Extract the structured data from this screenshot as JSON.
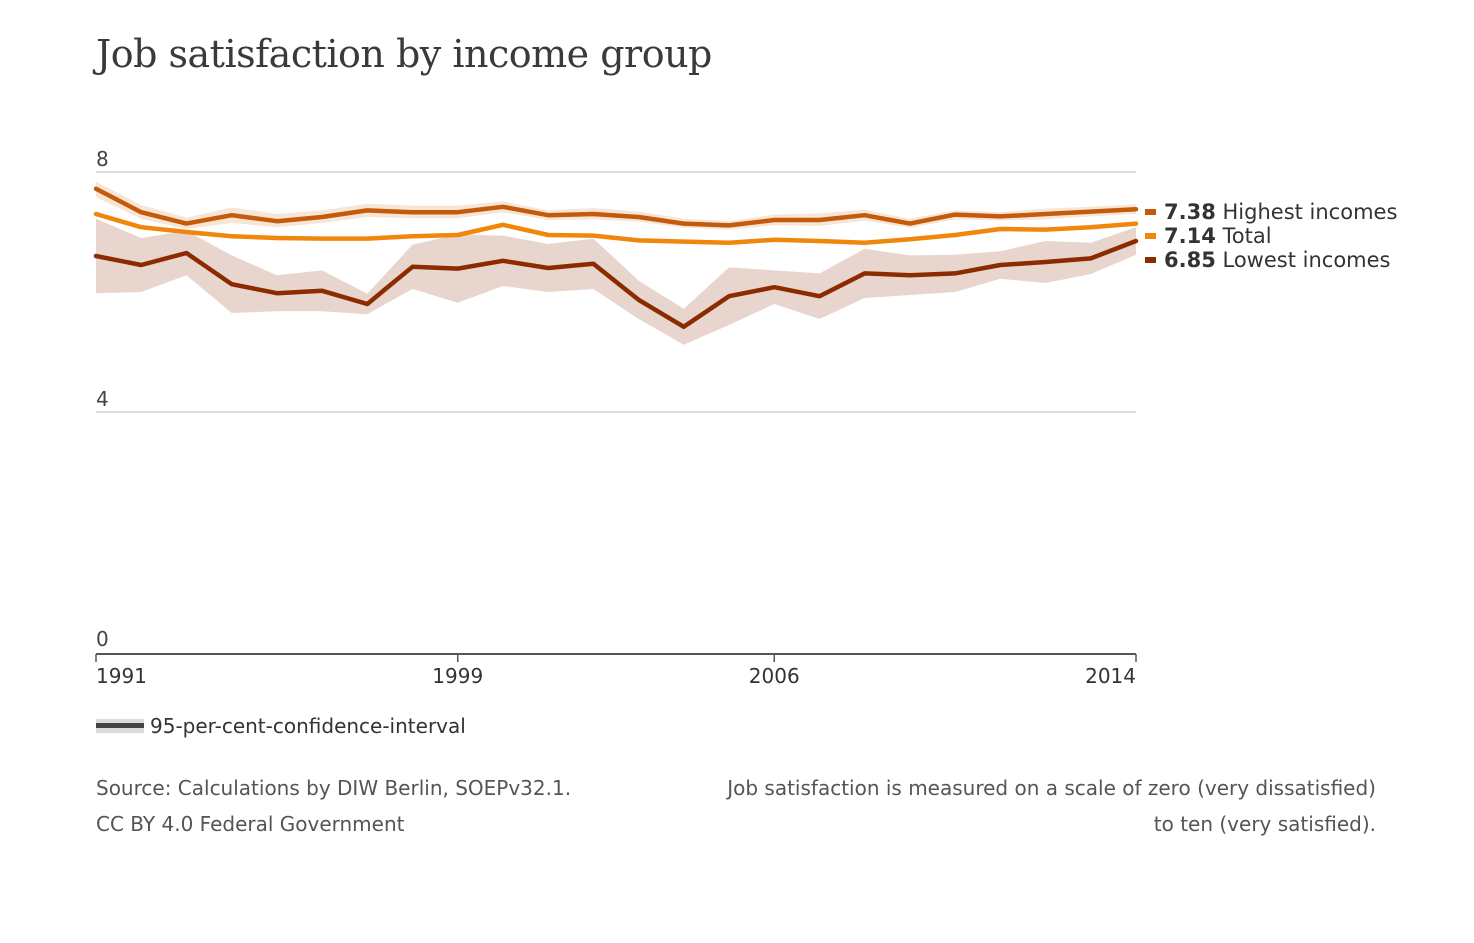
{
  "title": "Job satisfaction by income group",
  "legend": {
    "label": "95-per-cent-confidence-interval"
  },
  "footer": {
    "source_line1": "Source: Calculations by DIW Berlin, SOEPv32.1.",
    "source_line2": "CC BY 4.0 Federal Government",
    "note_line1": "Job satisfaction is measured on a scale of zero (very dissatisfied)",
    "note_line2": "to ten (very satisfied)."
  },
  "chart_data": {
    "type": "line",
    "title": "Job satisfaction by income group",
    "xlabel": "",
    "ylabel": "",
    "xlim": [
      1991,
      2014
    ],
    "ylim": [
      0,
      8
    ],
    "x_ticks": [
      "1991",
      "1999",
      "2006",
      "2014"
    ],
    "y_ticks": [
      "8",
      "4",
      "0"
    ],
    "x": [
      1991,
      1992,
      1993,
      1994,
      1995,
      1996,
      1997,
      1998,
      1999,
      2000,
      2001,
      2002,
      2003,
      2004,
      2005,
      2006,
      2007,
      2008,
      2009,
      2010,
      2011,
      2012,
      2013,
      2014
    ],
    "series": [
      {
        "name": "Highest incomes",
        "end_value": "7.38",
        "color": "#c45a0c",
        "values": [
          7.72,
          7.33,
          7.14,
          7.28,
          7.18,
          7.25,
          7.36,
          7.33,
          7.33,
          7.42,
          7.28,
          7.3,
          7.25,
          7.14,
          7.11,
          7.2,
          7.2,
          7.28,
          7.14,
          7.29,
          7.26,
          7.3,
          7.34,
          7.38
        ],
        "ci_lower": [
          7.58,
          7.22,
          7.05,
          7.15,
          7.08,
          7.15,
          7.25,
          7.23,
          7.23,
          7.33,
          7.2,
          7.21,
          7.17,
          7.07,
          7.04,
          7.11,
          7.1,
          7.19,
          7.07,
          7.21,
          7.19,
          7.21,
          7.26,
          7.3
        ],
        "ci_upper": [
          7.84,
          7.45,
          7.24,
          7.41,
          7.3,
          7.36,
          7.47,
          7.44,
          7.44,
          7.51,
          7.36,
          7.4,
          7.34,
          7.22,
          7.18,
          7.29,
          7.31,
          7.37,
          7.22,
          7.36,
          7.33,
          7.39,
          7.42,
          7.46
        ]
      },
      {
        "name": "Total",
        "end_value": "7.14",
        "color": "#f0860a",
        "values": [
          7.3,
          7.08,
          7.0,
          6.93,
          6.9,
          6.89,
          6.89,
          6.93,
          6.95,
          7.12,
          6.95,
          6.94,
          6.86,
          6.84,
          6.82,
          6.87,
          6.85,
          6.82,
          6.88,
          6.95,
          7.05,
          7.04,
          7.08,
          7.14
        ]
      },
      {
        "name": "Lowest incomes",
        "end_value": "6.85",
        "color": "#8c2b00",
        "values": [
          6.6,
          6.45,
          6.65,
          6.13,
          5.98,
          6.02,
          5.8,
          6.42,
          6.39,
          6.52,
          6.4,
          6.47,
          5.87,
          5.42,
          5.93,
          6.08,
          5.93,
          6.31,
          6.28,
          6.31,
          6.45,
          6.5,
          6.56,
          6.85
        ],
        "ci_lower": [
          5.98,
          6.0,
          6.28,
          5.65,
          5.68,
          5.68,
          5.63,
          6.05,
          5.82,
          6.1,
          6.0,
          6.05,
          5.55,
          5.12,
          5.45,
          5.8,
          5.55,
          5.9,
          5.95,
          6.0,
          6.22,
          6.15,
          6.3,
          6.62
        ],
        "ci_upper": [
          7.22,
          6.9,
          7.02,
          6.61,
          6.28,
          6.36,
          5.97,
          6.79,
          6.96,
          6.94,
          6.8,
          6.89,
          6.19,
          5.72,
          6.41,
          6.36,
          6.31,
          6.72,
          6.61,
          6.62,
          6.68,
          6.85,
          6.82,
          7.08
        ]
      }
    ]
  }
}
